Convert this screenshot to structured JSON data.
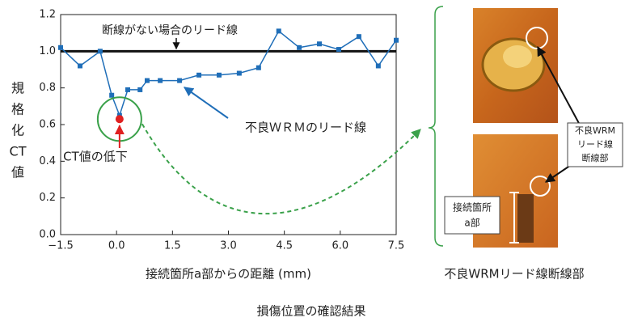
{
  "chart_data": {
    "type": "line",
    "x": [
      -1.5,
      -0.98,
      -0.44,
      -0.13,
      0.08,
      0.3,
      0.63,
      0.82,
      1.17,
      1.69,
      2.21,
      2.75,
      3.29,
      3.81,
      4.35,
      4.9,
      5.44,
      5.96,
      6.5,
      7.02,
      7.5
    ],
    "values": [
      1.02,
      0.92,
      1.0,
      0.76,
      0.65,
      0.79,
      0.79,
      0.84,
      0.84,
      0.84,
      0.87,
      0.87,
      0.88,
      0.91,
      1.11,
      1.02,
      1.04,
      1.01,
      1.08,
      0.92,
      1.06
    ],
    "color": "#1f6eb8",
    "xlim": [
      -1.5,
      7.5
    ],
    "xticks": [
      {
        "value": -1.5,
        "label": "−1.5"
      },
      {
        "value": 0,
        "label": "0.0"
      },
      1.5,
      {
        "value": 3,
        "label": "3.0"
      },
      4.5,
      {
        "value": 6,
        "label": "6.0"
      },
      7.5
    ],
    "ylim": [
      0,
      1.2
    ],
    "yticks": [
      {
        "value": 0,
        "label": "0.0"
      },
      0.2,
      0.4,
      0.6,
      0.8,
      {
        "value": 1,
        "label": "1.0"
      },
      1.2
    ],
    "y_label_lines": [
      "規",
      "格",
      "化",
      "CT",
      "値"
    ],
    "x_label": "接続箇所a部からの距離 (mm)",
    "reference_line": {
      "value": 1,
      "label": "断線がない場合のリード線"
    },
    "series_label": "不良ＷＲＭのリード線",
    "drop_point": {
      "x": 0.08,
      "y": 0.63,
      "label": "CT値の低下"
    }
  },
  "photo_panel": {
    "caption": "不良WRMリード線断線部",
    "break_callout": [
      "不良WRM",
      "リード線",
      "断線部"
    ],
    "joint_callout": [
      "接続箇所",
      "a部"
    ]
  },
  "figure_caption": "損傷位置の確認結果"
}
